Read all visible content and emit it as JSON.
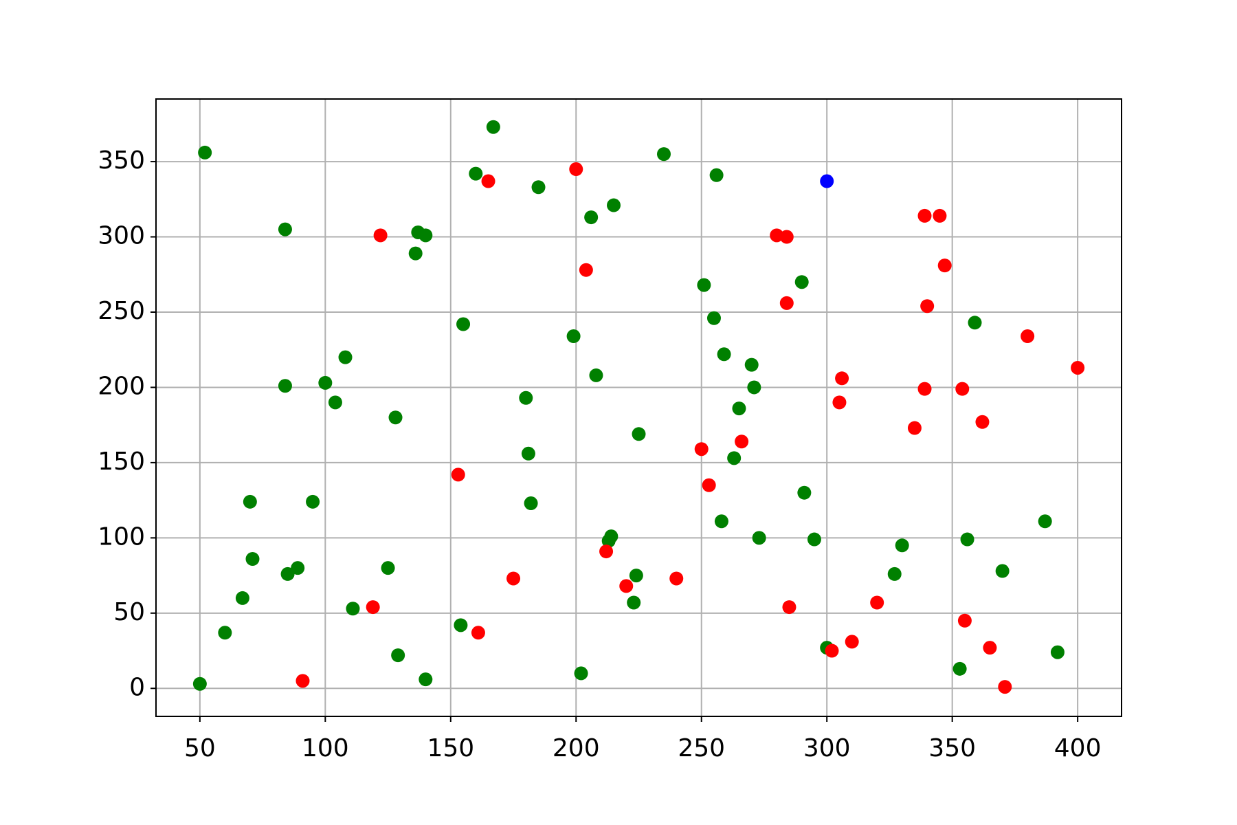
{
  "chart_data": {
    "type": "scatter",
    "xlim": [
      32.5,
      417.5
    ],
    "ylim": [
      -18.6,
      391.6
    ],
    "xticks": [
      50,
      100,
      150,
      200,
      250,
      300,
      350,
      400
    ],
    "yticks": [
      0,
      50,
      100,
      150,
      200,
      250,
      300,
      350
    ],
    "grid": true,
    "series": [
      {
        "color": "#008000",
        "x": [
          50,
          52,
          60,
          67,
          70,
          71,
          84,
          84,
          85,
          89,
          95,
          100,
          104,
          108,
          111,
          125,
          128,
          129,
          136,
          137,
          140,
          140,
          154,
          155,
          160,
          167,
          180,
          181,
          182,
          185,
          199,
          202,
          206,
          208,
          214,
          213,
          215,
          223,
          224,
          225,
          235,
          251,
          255,
          256,
          258,
          259,
          263,
          265,
          270,
          271,
          273,
          290,
          291,
          295,
          300,
          327,
          330,
          353,
          356,
          359,
          370,
          387,
          392
        ],
        "values": [
          3,
          356,
          37,
          60,
          124,
          86,
          305,
          201,
          76,
          80,
          124,
          203,
          190,
          220,
          53,
          80,
          180,
          22,
          289,
          303,
          301,
          6,
          42,
          242,
          342,
          373,
          193,
          156,
          123,
          333,
          234,
          10,
          313,
          208,
          101,
          98,
          321,
          57,
          75,
          169,
          355,
          268,
          246,
          341,
          111,
          222,
          153,
          186,
          215,
          200,
          100,
          270,
          130,
          99,
          27,
          76,
          95,
          13,
          99,
          243,
          78,
          111,
          24
        ]
      },
      {
        "color": "#ff0000",
        "x": [
          91,
          119,
          122,
          153,
          161,
          165,
          175,
          200,
          204,
          212,
          220,
          240,
          250,
          253,
          266,
          280,
          284,
          284,
          285,
          302,
          305,
          306,
          310,
          320,
          335,
          339,
          339,
          340,
          345,
          347,
          354,
          355,
          362,
          365,
          371,
          380,
          400
        ],
        "values": [
          5,
          54,
          301,
          142,
          37,
          337,
          73,
          345,
          278,
          91,
          68,
          73,
          159,
          135,
          164,
          301,
          300,
          256,
          54,
          25,
          190,
          206,
          31,
          57,
          173,
          314,
          199,
          254,
          314,
          281,
          199,
          45,
          177,
          27,
          1,
          234,
          213
        ]
      },
      {
        "color": "#0000ff",
        "x": [
          300
        ],
        "values": [
          337
        ]
      }
    ]
  }
}
